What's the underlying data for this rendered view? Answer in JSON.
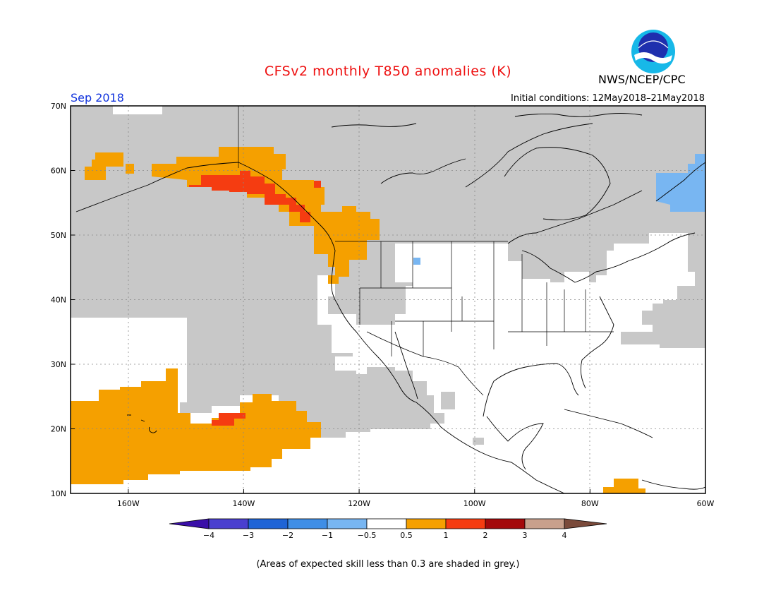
{
  "title": "CFSv2 monthly T850 anomalies (K)",
  "valid_month": "Sep 2018",
  "initial_conditions": "Initial conditions: 12May2018–21May2018",
  "agency": "NWS/NCEP/CPC",
  "logo_text": "NOAA",
  "note": "(Areas of expected skill less than 0.3 are shaded in grey.)",
  "map": {
    "lon_range": [
      -170,
      -60
    ],
    "lat_range": [
      10,
      70
    ],
    "lat_labels": [
      "70N",
      "60N",
      "50N",
      "40N",
      "30N",
      "20N",
      "10N"
    ],
    "lon_labels": [
      "160W",
      "140W",
      "120W",
      "100W",
      "80W",
      "60W"
    ]
  },
  "colorbar": {
    "labels": [
      "−4",
      "−3",
      "−2",
      "−1",
      "−0.5",
      "0.5",
      "1",
      "2",
      "3",
      "4"
    ],
    "colors": [
      "#3a0fa8",
      "#4a3fcf",
      "#1f64d6",
      "#3f8ee6",
      "#78b6f2",
      "#ffffff",
      "#f5a000",
      "#f53c11",
      "#a4090b",
      "#c8a08c",
      "#7a4a3a"
    ]
  },
  "colors": {
    "grey_skill": "#c8c8c8",
    "anomaly_0_5_to_1": "#f5a000",
    "anomaly_1_to_2": "#f53c11",
    "anomaly_neg_0_5_to_neg_1": "#78b6f2",
    "title": "#ee1111",
    "month": "#1133dd"
  }
}
